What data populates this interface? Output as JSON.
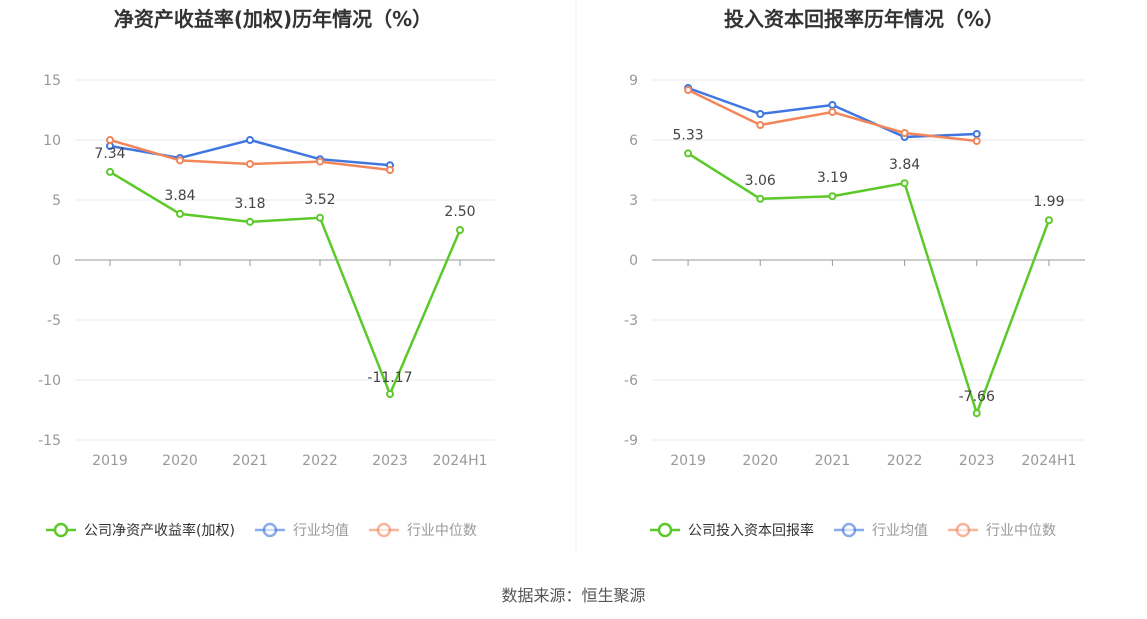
{
  "source": "数据来源：恒生聚源",
  "colors": {
    "company": "#5cc92a",
    "average": "#3f76e0",
    "median": "#f2865b",
    "grid": "#e6e8f2",
    "axis": "#999999"
  },
  "chart_data": [
    {
      "type": "line",
      "title": "净资产收益率(加权)历年情况（%）",
      "categories": [
        "2019",
        "2020",
        "2021",
        "2022",
        "2023",
        "2024H1"
      ],
      "ylim": [
        -15,
        15
      ],
      "yticks": [
        "15",
        "10",
        "5",
        "0",
        "-5",
        "-10",
        "-15"
      ],
      "grid": true,
      "legend_position": "bottom",
      "series": [
        {
          "name": "公司净资产收益率(加权)",
          "key": "company",
          "values": [
            7.34,
            3.84,
            3.18,
            3.52,
            -11.17,
            2.5
          ],
          "labels": [
            "7.34",
            "3.84",
            "3.18",
            "3.52",
            "-11.17",
            "2.50"
          ]
        },
        {
          "name": "行业均值",
          "key": "average",
          "values": [
            9.5,
            8.5,
            10.0,
            8.4,
            7.9,
            null
          ]
        },
        {
          "name": "行业中位数",
          "key": "median",
          "values": [
            10.0,
            8.3,
            8.0,
            8.2,
            7.5,
            null
          ]
        }
      ]
    },
    {
      "type": "line",
      "title": "投入资本回报率历年情况（%）",
      "categories": [
        "2019",
        "2020",
        "2021",
        "2022",
        "2023",
        "2024H1"
      ],
      "ylim": [
        -9,
        9
      ],
      "yticks": [
        "9",
        "6",
        "3",
        "0",
        "-3",
        "-6",
        "-9"
      ],
      "grid": true,
      "legend_position": "bottom",
      "series": [
        {
          "name": "公司投入资本回报率",
          "key": "company",
          "values": [
            5.33,
            3.06,
            3.19,
            3.84,
            -7.66,
            1.99
          ],
          "labels": [
            "5.33",
            "3.06",
            "3.19",
            "3.84",
            "-7.66",
            "1.99"
          ]
        },
        {
          "name": "行业均值",
          "key": "average",
          "values": [
            8.6,
            7.3,
            7.75,
            6.15,
            6.3,
            null
          ]
        },
        {
          "name": "行业中位数",
          "key": "median",
          "values": [
            8.5,
            6.75,
            7.4,
            6.35,
            5.95,
            null
          ]
        }
      ]
    }
  ]
}
